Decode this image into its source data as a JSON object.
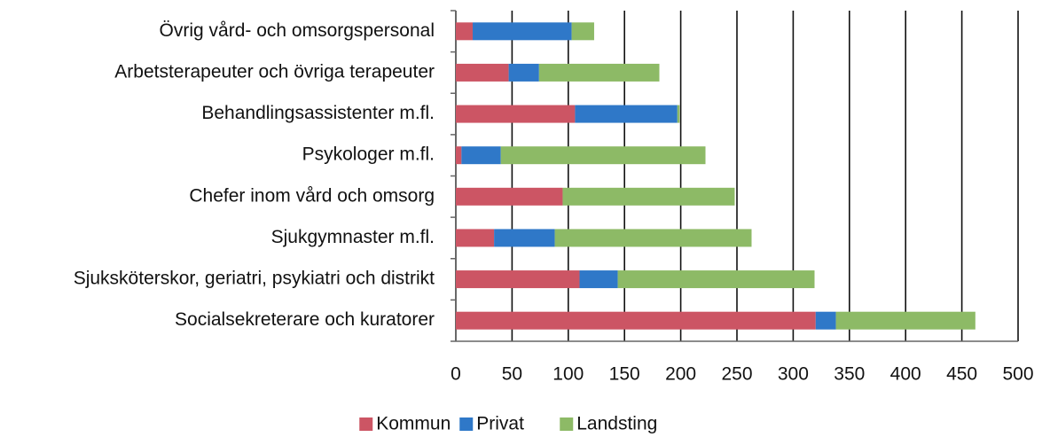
{
  "chart_data": {
    "type": "stacked-bar-horizontal",
    "categories": [
      "Övrig vård- och omsorgspersonal",
      "Arbetsterapeuter och övriga terapeuter",
      "Behandlingsassistenter m.fl.",
      "Psykologer m.fl.",
      "Chefer inom vård och omsorg",
      "Sjukgymnaster m.fl.",
      "Sjuksköterskor, geriatri, psykiatri och distrikt",
      "Socialsekreterare och kuratorer"
    ],
    "series": [
      {
        "name": "Kommun",
        "color": "#cc5564",
        "values": [
          15,
          47,
          106,
          5,
          95,
          34,
          110,
          320
        ]
      },
      {
        "name": "Privat",
        "color": "#2f78c8",
        "values": [
          88,
          27,
          91,
          35,
          0,
          54,
          34,
          18
        ]
      },
      {
        "name": "Landsting",
        "color": "#8dba66",
        "values": [
          20,
          107,
          2,
          182,
          153,
          175,
          175,
          124
        ]
      }
    ],
    "xlim": [
      0,
      500
    ],
    "xticks": [
      0,
      50,
      100,
      150,
      200,
      250,
      300,
      350,
      400,
      450,
      500
    ],
    "grid": true
  }
}
